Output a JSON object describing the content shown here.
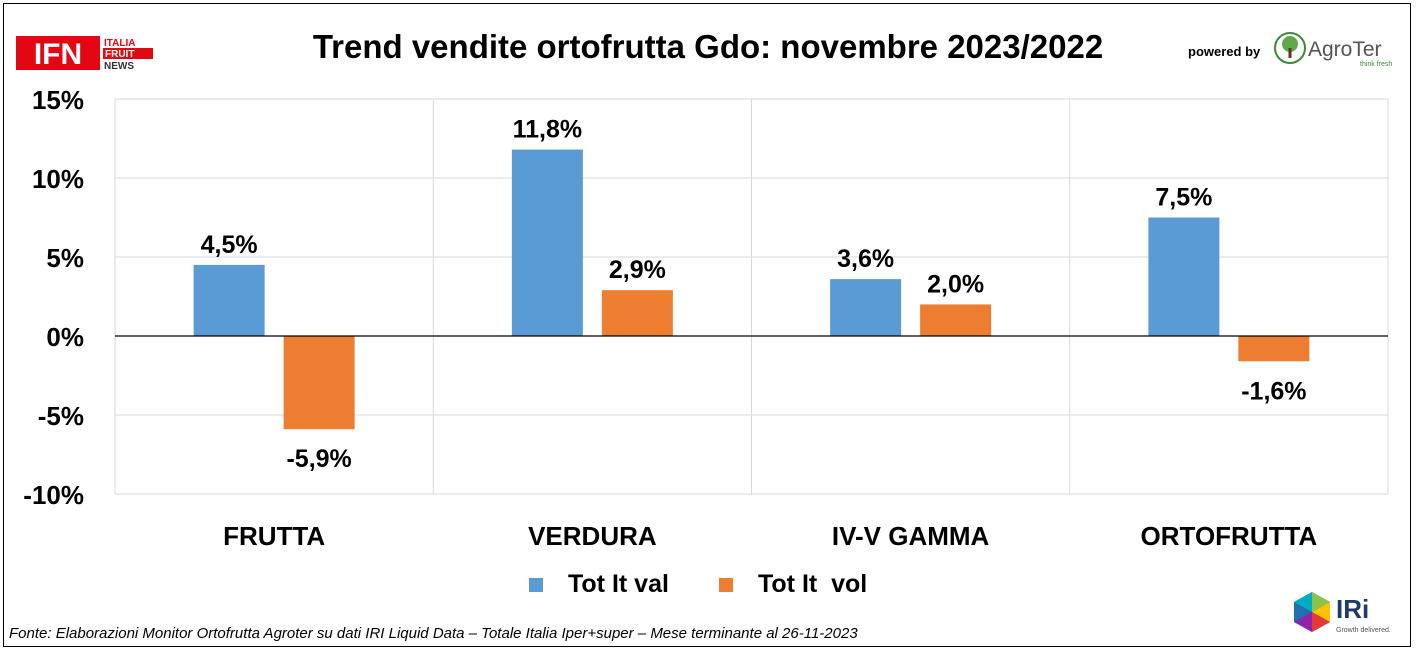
{
  "header": {
    "title": "Trend vendite ortofrutta Gdo: novembre 2023/2022",
    "powered_by": "powered by"
  },
  "logos": {
    "ifn": {
      "main": "IFN",
      "line1": "ITALIA",
      "line2": "FRUIT",
      "line3": "NEWS"
    },
    "agroter": {
      "name": "AgroTer",
      "tagline": "think fresh"
    },
    "iri": {
      "name": "IRi",
      "tagline": "Growth delivered."
    }
  },
  "footer": {
    "source": "Fonte: Elaborazioni Monitor Ortofrutta Agroter su dati IRI Liquid Data – Totale Italia Iper+super – Mese terminante al 26-11-2023"
  },
  "colors": {
    "series_val": "#5B9BD5",
    "series_vol": "#ED7D31",
    "grid": "#D9D9D9",
    "ifn_red": "#E30613",
    "agroter_green": "#3A8A3A"
  },
  "chart_data": {
    "type": "bar",
    "title": "Trend vendite ortofrutta Gdo: novembre 2023/2022",
    "xlabel": "",
    "ylabel": "",
    "categories": [
      "FRUTTA",
      "VERDURA",
      "IV-V GAMMA",
      "ORTOFRUTTA"
    ],
    "series": [
      {
        "name": "Tot It val",
        "values": [
          4.5,
          11.8,
          3.6,
          7.5
        ],
        "labels": [
          "4,5%",
          "11,8%",
          "3,6%",
          "7,5%"
        ]
      },
      {
        "name": "Tot It  vol",
        "values": [
          -5.9,
          2.9,
          2.0,
          -1.6
        ],
        "labels": [
          "-5,9%",
          "2,9%",
          "2,0%",
          "-1,6%"
        ]
      }
    ],
    "ylim": [
      -10,
      15
    ],
    "yticks": [
      15,
      10,
      5,
      0,
      -5,
      -10
    ],
    "ytick_labels": [
      "15%",
      "10%",
      "5%",
      "0%",
      "-5%",
      "-10%"
    ],
    "grid": true,
    "legend_position": "bottom"
  }
}
